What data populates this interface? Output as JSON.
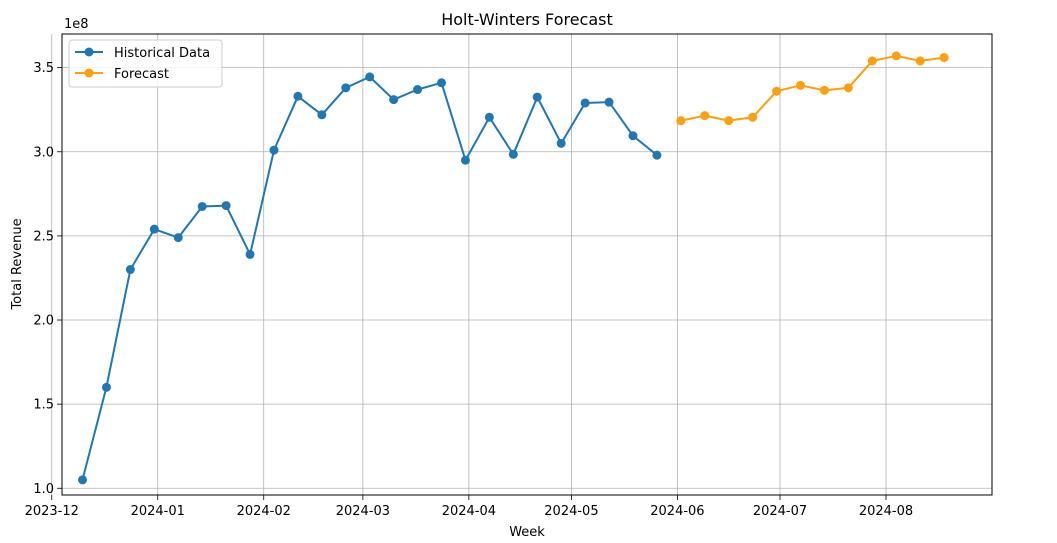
{
  "chart_data": {
    "type": "line",
    "title": "Holt-Winters Forecast",
    "xlabel": "Week",
    "ylabel": "Total Revenue",
    "y_multiplier_label": "1e8",
    "ylim": [
      96000000.0,
      370000000.0
    ],
    "xlim": [
      "2023-12-04",
      "2024-09-01"
    ],
    "grid": true,
    "legend_position": "upper-left",
    "x_ticks": [
      "2023-12",
      "2024-01",
      "2024-02",
      "2024-03",
      "2024-04",
      "2024-05",
      "2024-06",
      "2024-07",
      "2024-08"
    ],
    "x_tick_dates": [
      "2023-12-01",
      "2024-01-01",
      "2024-02-01",
      "2024-03-01",
      "2024-04-01",
      "2024-05-01",
      "2024-06-01",
      "2024-07-01",
      "2024-08-01"
    ],
    "y_ticks": [
      "1.0",
      "1.5",
      "2.0",
      "2.5",
      "3.0",
      "3.5"
    ],
    "y_tick_values": [
      100000000.0,
      150000000.0,
      200000000.0,
      250000000.0,
      300000000.0,
      350000000.0
    ],
    "series": [
      {
        "name": "Historical Data",
        "color": "#1f77b4",
        "x": [
          "2023-12-10",
          "2023-12-17",
          "2023-12-24",
          "2023-12-31",
          "2024-01-07",
          "2024-01-14",
          "2024-01-21",
          "2024-01-28",
          "2024-02-04",
          "2024-02-11",
          "2024-02-18",
          "2024-02-25",
          "2024-03-03",
          "2024-03-10",
          "2024-03-17",
          "2024-03-24",
          "2024-03-31",
          "2024-04-07",
          "2024-04-14",
          "2024-04-21",
          "2024-04-28",
          "2024-05-05",
          "2024-05-12",
          "2024-05-19",
          "2024-05-26"
        ],
        "y": [
          105000000.0,
          160000000.0,
          230000000.0,
          254000000.0,
          249000000.0,
          267500000.0,
          268000000.0,
          239000000.0,
          301000000.0,
          333000000.0,
          322000000.0,
          338000000.0,
          344500000.0,
          331000000.0,
          337000000.0,
          341000000.0,
          295000000.0,
          320500000.0,
          298500000.0,
          332500000.0,
          305000000.0,
          329000000.0,
          329500000.0,
          309500000.0,
          298000000.0
        ]
      },
      {
        "name": "Forecast",
        "color": "#ff9f0e",
        "x": [
          "2024-06-02",
          "2024-06-09",
          "2024-06-16",
          "2024-06-23",
          "2024-06-30",
          "2024-07-07",
          "2024-07-14",
          "2024-07-21",
          "2024-07-28",
          "2024-08-04",
          "2024-08-11",
          "2024-08-18"
        ],
        "y": [
          318500000.0,
          321500000.0,
          318500000.0,
          320500000.0,
          336000000.0,
          339500000.0,
          336500000.0,
          338000000.0,
          354000000.0,
          357000000.0,
          354000000.0,
          356000000.0
        ]
      }
    ]
  }
}
